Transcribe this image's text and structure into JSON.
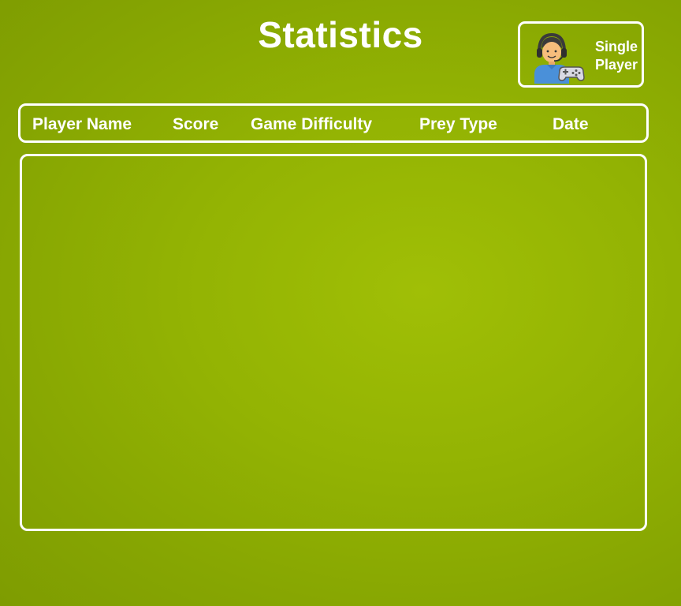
{
  "page": {
    "title": "Statistics"
  },
  "mode_button": {
    "label": "Single Player",
    "icon": "gamer-with-controller-icon"
  },
  "table": {
    "columns": [
      "Player Name",
      "Score",
      "Game Difficulty",
      "Prey Type",
      "Date"
    ],
    "rows": []
  },
  "colors": {
    "background": "#93b303",
    "text": "#ffffff",
    "border": "#ffffff"
  }
}
